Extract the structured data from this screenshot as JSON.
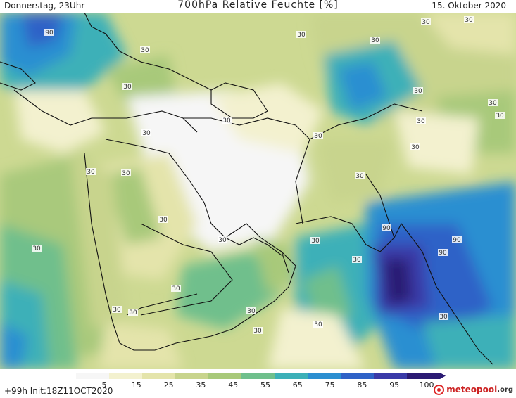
{
  "header": {
    "left": "Donnerstag, 23Uhr",
    "title": "700hPa Relative Feuchte [%]",
    "date": "15. Oktober 2020"
  },
  "footer": {
    "run": "+99h  Init:18Z11OCT2020",
    "logo_a": "meteopool",
    "logo_b": ".org"
  },
  "legend": {
    "ticks": [
      "5",
      "15",
      "25",
      "35",
      "45",
      "55",
      "65",
      "75",
      "85",
      "95",
      "100"
    ],
    "colors": [
      "#f6f6f6",
      "#f3f1cf",
      "#e4e4ab",
      "#c8d48d",
      "#a8c97a",
      "#6fbf8c",
      "#3cb0b8",
      "#2b8fd1",
      "#2f62c7",
      "#3a3aa8",
      "#2b1a73"
    ]
  },
  "map": {
    "contour_labels": [
      "90",
      "30",
      "30",
      "30",
      "30",
      "30",
      "30",
      "30",
      "30",
      "30",
      "30",
      "30",
      "30",
      "30",
      "30",
      "30",
      "30",
      "30",
      "30",
      "30",
      "30",
      "30",
      "30",
      "30",
      "30",
      "30",
      "30",
      "30",
      "30",
      "90",
      "90",
      "90",
      "30"
    ]
  }
}
